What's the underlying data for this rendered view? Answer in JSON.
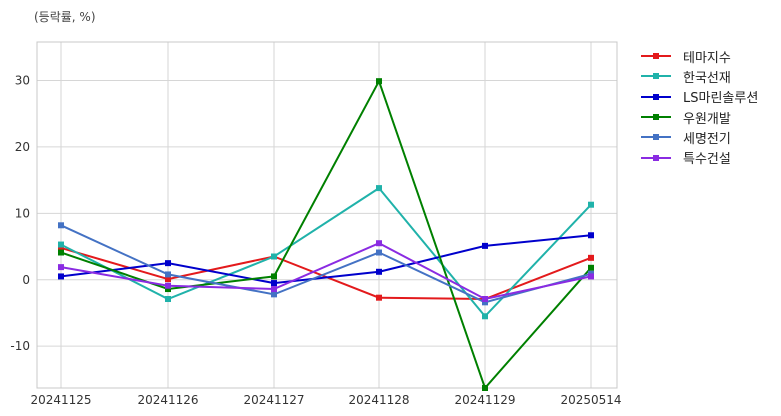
{
  "chart_data": {
    "type": "line",
    "unit_label": "(등락률, %)",
    "categories": [
      "20241125",
      "20241126",
      "20241127",
      "20241128",
      "20241129",
      "20250514"
    ],
    "ylim": [
      -16.3,
      35.8
    ],
    "yticks": [
      30,
      20,
      10,
      0,
      -10
    ],
    "grid": true,
    "legend_position": "right",
    "series": [
      {
        "name": "테마지수",
        "color": "#e31a1c",
        "values": [
          4.8,
          0.1,
          3.5,
          -2.7,
          -2.9,
          3.3
        ]
      },
      {
        "name": "한국선재",
        "color": "#20b2aa",
        "values": [
          5.3,
          -2.9,
          3.5,
          13.8,
          -5.5,
          11.3
        ]
      },
      {
        "name": "LS마린솔루션",
        "color": "#0000cc",
        "values": [
          0.5,
          2.5,
          -0.5,
          1.2,
          5.1,
          6.7
        ]
      },
      {
        "name": "우원개발",
        "color": "#008000",
        "values": [
          4.1,
          -1.4,
          0.5,
          29.9,
          -16.3,
          1.8
        ]
      },
      {
        "name": "세명전기",
        "color": "#4472c4",
        "values": [
          8.2,
          0.8,
          -2.2,
          4.1,
          -3.4,
          0.9
        ]
      },
      {
        "name": "특수건설",
        "color": "#8a2be2",
        "values": [
          1.9,
          -0.9,
          -1.4,
          5.5,
          -2.9,
          0.5
        ]
      }
    ]
  }
}
